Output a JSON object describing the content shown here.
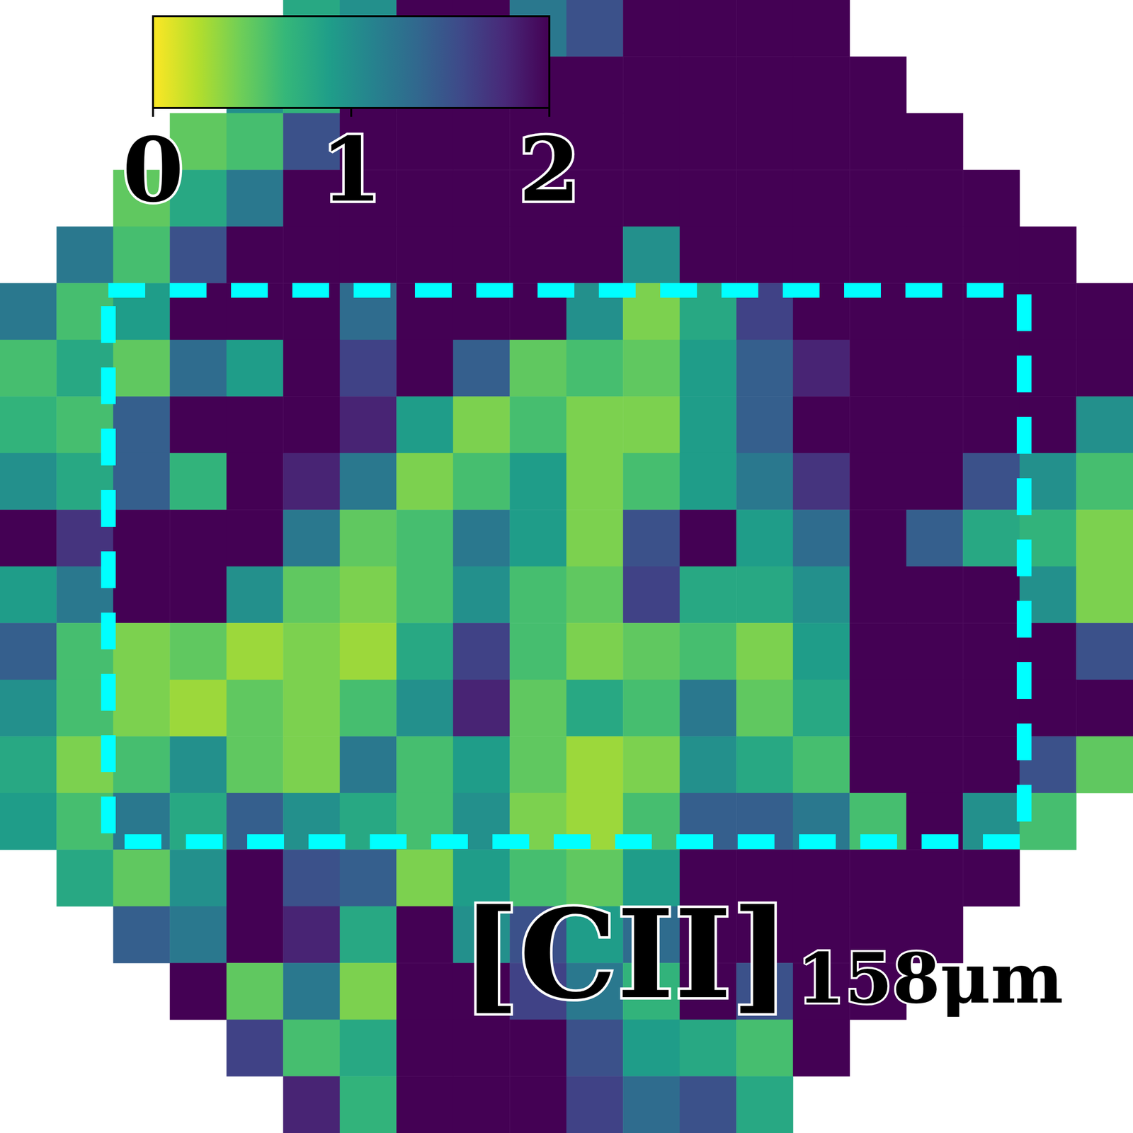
{
  "chart_data": {
    "type": "heatmap",
    "tick_labels": false,
    "cells": [
      [
        null,
        null,
        null,
        null,
        null,
        0.8,
        1.0,
        2,
        2,
        1.2,
        1.5,
        2,
        2,
        2,
        2,
        null,
        null,
        null,
        null,
        null
      ],
      [
        null,
        null,
        null,
        null,
        1.0,
        0.7,
        2,
        2,
        2,
        2,
        2,
        2,
        2,
        2,
        2,
        2,
        null,
        null,
        null,
        null
      ],
      [
        null,
        null,
        null,
        0.5,
        0.6,
        1.5,
        2,
        2,
        2,
        2,
        2,
        2,
        2,
        2,
        2,
        2,
        2,
        null,
        null,
        null
      ],
      [
        null,
        null,
        0.5,
        0.8,
        1.2,
        2,
        2,
        2,
        2,
        2,
        2,
        2,
        2,
        2,
        2,
        2,
        2,
        2,
        null,
        null
      ],
      [
        null,
        1.2,
        0.6,
        1.5,
        2,
        2,
        2,
        2,
        2,
        2,
        2,
        1.0,
        2,
        2,
        2,
        2,
        2,
        2,
        2,
        null
      ],
      [
        1.2,
        0.6,
        0.9,
        2,
        2,
        2,
        1.3,
        2,
        2,
        2,
        1.0,
        0.4,
        0.8,
        1.6,
        2,
        2,
        2,
        2,
        2,
        2
      ],
      [
        0.6,
        0.8,
        0.5,
        1.3,
        0.9,
        2,
        1.6,
        2,
        1.4,
        0.5,
        0.6,
        0.5,
        0.9,
        1.4,
        1.8,
        2,
        2,
        2,
        2,
        2
      ],
      [
        0.7,
        0.6,
        1.4,
        2,
        2,
        2,
        1.8,
        0.9,
        0.4,
        0.6,
        0.4,
        0.4,
        0.9,
        1.4,
        2,
        2,
        2,
        2,
        2,
        1.0
      ],
      [
        1.0,
        0.8,
        1.4,
        0.7,
        2,
        1.8,
        1.2,
        0.4,
        0.6,
        0.9,
        0.4,
        0.6,
        0.9,
        1.2,
        1.7,
        2,
        2,
        1.5,
        1.0,
        0.6
      ],
      [
        2,
        1.7,
        2,
        2,
        2,
        1.2,
        0.5,
        0.6,
        1.2,
        0.9,
        0.4,
        1.5,
        2,
        0.9,
        1.3,
        2,
        1.4,
        0.8,
        0.7,
        0.4
      ],
      [
        0.9,
        1.2,
        2,
        2,
        1.0,
        0.5,
        0.4,
        0.6,
        1.0,
        0.6,
        0.5,
        1.6,
        0.8,
        0.8,
        1.0,
        2,
        2,
        2,
        1.0,
        0.4
      ],
      [
        1.4,
        0.6,
        0.4,
        0.5,
        0.3,
        0.4,
        0.3,
        0.8,
        1.6,
        0.6,
        0.4,
        0.5,
        0.6,
        0.4,
        0.9,
        2,
        2,
        2,
        2,
        1.5
      ],
      [
        1.0,
        0.6,
        0.4,
        0.3,
        0.5,
        0.4,
        0.6,
        1.0,
        1.8,
        0.5,
        0.8,
        0.6,
        1.2,
        0.5,
        0.8,
        2,
        2,
        2,
        2,
        2
      ],
      [
        0.8,
        0.4,
        0.6,
        1.0,
        0.5,
        0.4,
        1.2,
        0.6,
        0.9,
        0.5,
        0.3,
        0.4,
        1.0,
        0.8,
        0.6,
        2,
        2,
        2,
        1.5,
        0.5
      ],
      [
        0.9,
        0.6,
        1.2,
        0.8,
        1.4,
        1.0,
        0.8,
        0.6,
        1.0,
        0.4,
        0.3,
        0.6,
        1.4,
        1.4,
        1.2,
        0.6,
        2,
        1.0,
        0.6,
        null
      ],
      [
        null,
        0.8,
        0.5,
        1.0,
        2,
        1.5,
        1.4,
        0.4,
        0.9,
        0.6,
        0.5,
        0.9,
        2,
        2,
        2,
        2,
        2,
        2,
        null,
        null
      ],
      [
        null,
        null,
        1.4,
        1.2,
        2,
        1.8,
        0.8,
        2,
        1.0,
        1.5,
        0.9,
        1.3,
        2,
        2,
        2,
        2,
        2,
        null,
        null,
        null
      ],
      [
        null,
        null,
        null,
        2,
        0.5,
        1.2,
        0.4,
        2,
        2,
        1.6,
        1.2,
        0.7,
        2,
        1.5,
        2,
        2,
        null,
        null,
        null,
        null
      ],
      [
        null,
        null,
        null,
        null,
        1.6,
        0.6,
        0.8,
        2,
        2,
        2,
        1.5,
        0.9,
        0.8,
        0.6,
        2,
        null,
        null,
        null,
        null,
        null
      ],
      [
        null,
        null,
        null,
        null,
        null,
        1.8,
        0.7,
        2,
        2,
        2,
        1.6,
        1.3,
        1.5,
        0.8,
        null,
        null,
        null,
        null,
        null,
        null
      ]
    ],
    "colorbar": {
      "range": [
        0,
        2
      ],
      "ticks": [
        0,
        1,
        2
      ]
    },
    "annotation": {
      "text": "[CII]",
      "subscript": "158μm"
    }
  }
}
